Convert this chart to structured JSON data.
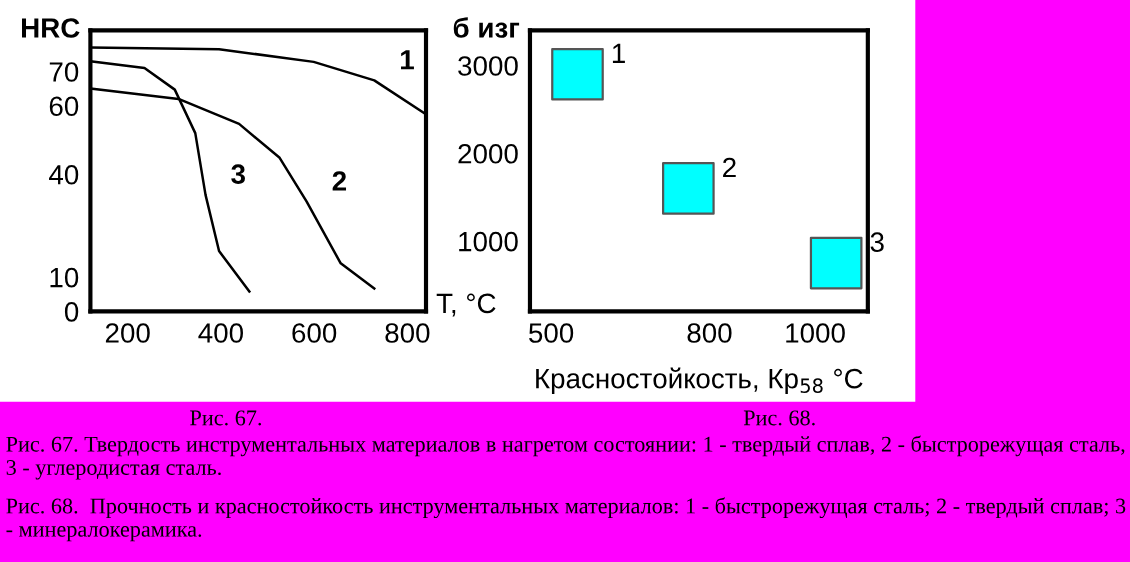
{
  "chart_data": [
    {
      "type": "line",
      "xlabel": "T, °C",
      "ylabel": "HRC",
      "xlim": [
        120,
        840
      ],
      "ylim": [
        0,
        82
      ],
      "xticks": [
        200,
        400,
        600,
        800
      ],
      "yticks": [
        0,
        10,
        40,
        60,
        70
      ],
      "series": [
        {
          "name": "1",
          "color": "#000000",
          "x": [
            120,
            396,
            599,
            729,
            840
          ],
          "values": [
            77,
            76.5,
            72.8,
            67.4,
            57.5
          ]
        },
        {
          "name": "2",
          "color": "#000000",
          "x": [
            120,
            309,
            439,
            526,
            584,
            657,
            729
          ],
          "values": [
            65,
            62,
            54.7,
            44.8,
            32,
            14,
            6.7
          ]
        },
        {
          "name": "3",
          "color": "#000000",
          "x": [
            120,
            236,
            301,
            345,
            367,
            396,
            461
          ],
          "values": [
            73,
            71,
            64.7,
            52,
            34,
            17.6,
            5.8
          ]
        }
      ],
      "annotations": [
        "Рис. 67.",
        "Рис. 67. Твердость инструментальных материалов в нагретом состоянии: 1 - твердый сплав, 2 - быстрорежущая сталь, 3 - углеродистая сталь."
      ]
    },
    {
      "type": "scatter",
      "marker": "square",
      "xlabel": "Красностойкость, Кр$_{58}$ °C",
      "ylabel": "б изг",
      "xlim": [
        460,
        1100
      ],
      "ylim": [
        200,
        3400
      ],
      "xticks": [
        500,
        800,
        1000
      ],
      "yticks": [
        1000,
        2000,
        3000
      ],
      "series": [
        {
          "name": "1",
          "color": "#00ffff",
          "x": [
            550
          ],
          "values": [
            2900
          ]
        },
        {
          "name": "2",
          "color": "#00ffff",
          "x": [
            760
          ],
          "values": [
            1600
          ]
        },
        {
          "name": "3",
          "color": "#00ffff",
          "x": [
            1040
          ],
          "values": [
            750
          ]
        }
      ],
      "annotations": [
        "Рис. 68.",
        "Рис. 68.  Прочность и красностойкость инструментальных материалов: 1 - быстрорежущая сталь; 2 - твердый сплав; 3 - минералокерамика."
      ]
    }
  ]
}
